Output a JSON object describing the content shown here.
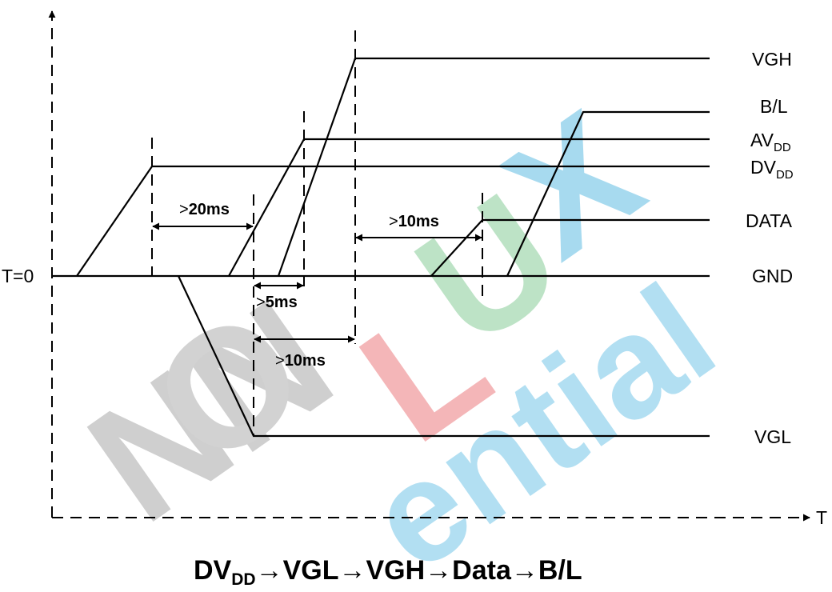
{
  "diagram": {
    "axis": {
      "origin_label": "T=0",
      "x_axis_label": "T"
    },
    "signals": {
      "vgh": "VGH",
      "bl": "B/L",
      "avdd": {
        "main": "AV",
        "sub": "DD"
      },
      "dvdd": {
        "main": "DV",
        "sub": "DD"
      },
      "data": "DATA",
      "gnd": "GND",
      "vgl": "VGL"
    },
    "timing": {
      "t_20ms": {
        "symbol": ">",
        "value": "20ms"
      },
      "t_5ms": {
        "symbol": ">",
        "value": "5ms"
      },
      "t_10ms_vgh": {
        "symbol": ">",
        "value": "10ms"
      },
      "t_10ms_data": {
        "symbol": ">",
        "value": "10ms"
      }
    },
    "caption": {
      "dvdd_main": "DV",
      "dvdd_sub": "DD",
      "arrow": "→",
      "vgl": "VGL",
      "vgh": "VGH",
      "data": "Data",
      "bl": "B/L"
    },
    "watermark": {
      "text": "INNOLUX",
      "sub_text": "Confidential"
    },
    "colors": {
      "line": "#000000",
      "watermark_gray": "#c6c6c6",
      "watermark_red": "#f5b7b9",
      "watermark_green": "#bfe3c8",
      "watermark_blue": "#a9dbf0"
    }
  }
}
